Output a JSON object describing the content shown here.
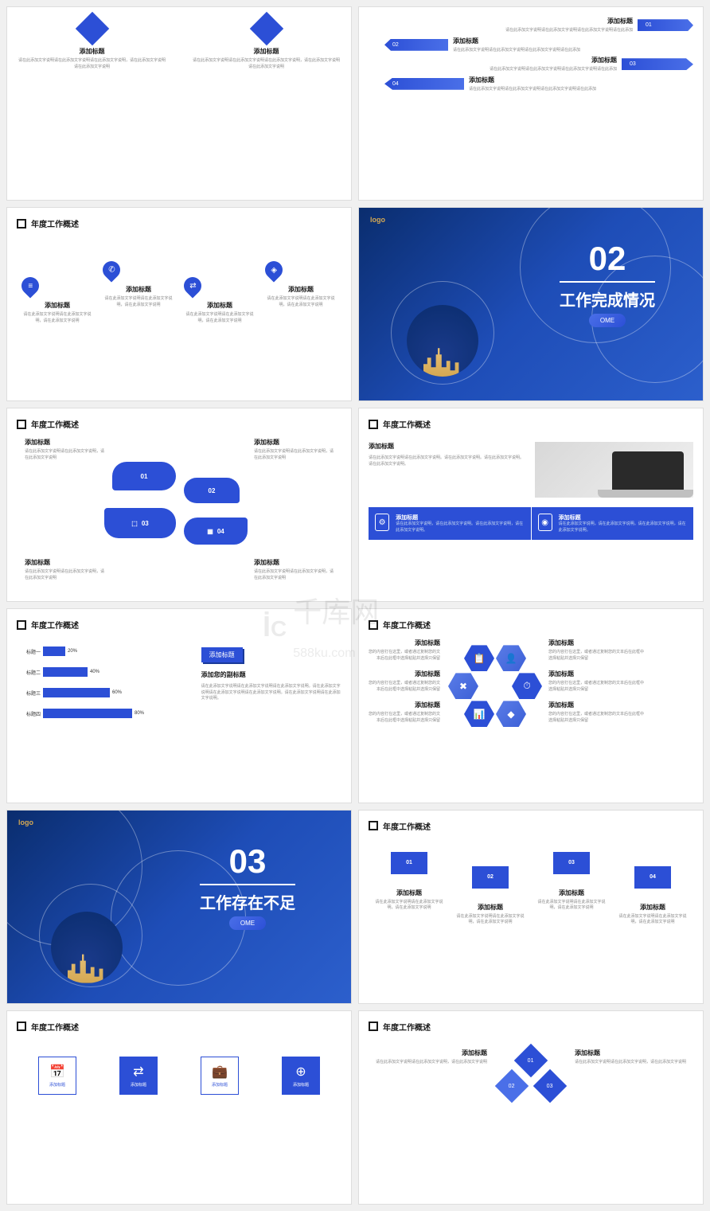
{
  "common": {
    "section_header": "年度工作概述",
    "item_title": "添加标题",
    "item_desc_short": "请在此添加文字说明请在此添加文字说明，请在此添加文字说明",
    "item_desc_long": "请在此添加文字说明请在此添加文字说明请在此添加文字说明，请在此添加文字说明请在此添加文字说明",
    "logo": "logo",
    "colors": {
      "primary": "#2c4fd6",
      "primary_light": "#4a6fe8",
      "accent": "#d4a853",
      "bg_dark1": "#0a2d6e",
      "bg_dark2": "#1e4db7"
    }
  },
  "slide1": {
    "items": [
      {
        "title": "添加标题"
      },
      {
        "title": "添加标题"
      }
    ]
  },
  "slide2": {
    "rows": [
      {
        "num": "01",
        "title": "添加标题",
        "desc": "请在此添加文字说明请在此添加文字说明请在此添加文字说明请在此添加"
      },
      {
        "num": "02",
        "title": "添加标题",
        "desc": "请在此添加文字说明请在此添加文字说明请在此添加文字说明请在此添加"
      },
      {
        "num": "03",
        "title": "添加标题",
        "desc": "请在此添加文字说明请在此添加文字说明请在此添加文字说明请在此添加"
      },
      {
        "num": "04",
        "title": "添加标题",
        "desc": "请在此添加文字说明请在此添加文字说明请在此添加文字说明请在此添加"
      }
    ]
  },
  "slide3": {
    "items": [
      {
        "icon": "≡"
      },
      {
        "icon": "✆"
      },
      {
        "icon": "⇄"
      },
      {
        "icon": "◈"
      }
    ]
  },
  "slide4": {
    "num": "02",
    "title": "工作完成情况",
    "pill": "OME"
  },
  "slide5": {
    "bubbles": [
      {
        "num": "01"
      },
      {
        "num": "02"
      },
      {
        "num": "03"
      },
      {
        "num": "04"
      }
    ],
    "corners": [
      "添加标题",
      "添加标题",
      "添加标题",
      "添加标题"
    ]
  },
  "slide6": {
    "top_title": "添加标题",
    "top_desc": "请在此添加文字说明请在此添加文字说明。请在此添加文字说明。请在此添加文字说明。请在此添加文字说明。",
    "boxes": [
      {
        "icon": "⚙",
        "title": "添加标题",
        "desc": "请在此添加文字说明，请在此添加文字说明。请在此添加文字说明，请在此添加文字说明。"
      },
      {
        "icon": "◉",
        "title": "添加标题",
        "desc": "请在此添加文字说明，请在此添加文字说明。请在此添加文字说明，请在此添加文字说明。"
      }
    ]
  },
  "slide7": {
    "chart": {
      "type": "bar-horizontal",
      "bars": [
        {
          "label": "标题一",
          "value": 20,
          "text": "20%"
        },
        {
          "label": "标题二",
          "value": 40,
          "text": "40%"
        },
        {
          "label": "标题三",
          "value": 60,
          "text": "60%"
        },
        {
          "label": "标题四",
          "value": 80,
          "text": "80%"
        }
      ],
      "bar_color": "#2c4fd6",
      "max": 100
    },
    "side_title": "添加标题",
    "side_sub": "添加您的副标题",
    "side_desc": "请在此添加文字说明请在此添加文字说明请在此添加文字说明。请在此添加文字说明请在此添加文字说明请在此添加文字说明。请在此添加文字说明请在此添加文字说明。"
  },
  "slide8": {
    "hex_icons": [
      "📋",
      "👤",
      "✖",
      "⏱",
      "📊",
      "◆"
    ],
    "items": [
      {
        "title": "添加标题",
        "desc": "您的内容打在这里，或者通过复制您的文本后在此框中选择粘贴并选择只保留"
      },
      {
        "title": "添加标题",
        "desc": "您的内容打在这里，或者通过复制您的文本后在此框中选择粘贴并选择只保留"
      },
      {
        "title": "添加标题",
        "desc": "您的内容打在这里，或者通过复制您的文本后在此框中选择粘贴并选择只保留"
      },
      {
        "title": "添加标题",
        "desc": "您的内容打在这里，或者通过复制您的文本后在此框中选择粘贴并选择只保留"
      },
      {
        "title": "添加标题",
        "desc": "您的内容打在这里，或者通过复制您的文本后在此框中选择粘贴并选择只保留"
      },
      {
        "title": "添加标题",
        "desc": "您的内容打在这里，或者通过复制您的文本后在此框中选择粘贴并选择只保留"
      }
    ]
  },
  "slide9": {
    "num": "03",
    "title": "工作存在不足",
    "pill": "OME"
  },
  "slide10": {
    "boxes": [
      {
        "num": "01"
      },
      {
        "num": "02"
      },
      {
        "num": "03"
      },
      {
        "num": "04"
      }
    ],
    "items": [
      "添加标题",
      "添加标题",
      "添加标题",
      "添加标题"
    ]
  },
  "slide11": {
    "icons": [
      {
        "icon": "📅",
        "label": "添加标题",
        "outline": true
      },
      {
        "icon": "⇄",
        "label": "添加标题",
        "outline": false
      },
      {
        "icon": "💼",
        "label": "添加标题",
        "outline": true
      },
      {
        "icon": "⊕",
        "label": "添加标题",
        "outline": false
      }
    ]
  },
  "slide12": {
    "diamonds": [
      {
        "num": "01"
      },
      {
        "num": "02"
      },
      {
        "num": "03"
      }
    ],
    "items": [
      "添加标题",
      "添加标题"
    ]
  },
  "watermark": {
    "brand": "千库网",
    "sub": "588ku.com",
    "icon": "⊂"
  }
}
